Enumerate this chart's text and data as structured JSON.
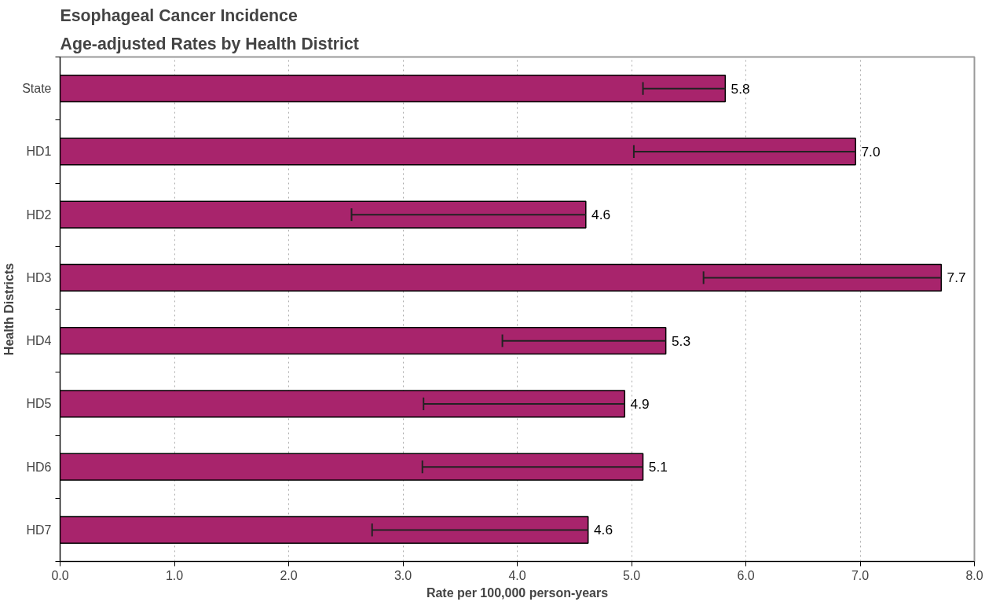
{
  "chart_data": {
    "type": "bar",
    "orientation": "horizontal",
    "title": "Esophageal Cancer Incidence",
    "subtitle": "Age-adjusted Rates by Health District",
    "xlabel": "Rate per 100,000 person-years",
    "ylabel": "Health Districts",
    "categories": [
      "State",
      "HD1",
      "HD2",
      "HD3",
      "HD4",
      "HD5",
      "HD6",
      "HD7"
    ],
    "values": [
      5.82,
      6.96,
      4.6,
      7.71,
      5.3,
      4.94,
      5.1,
      4.62
    ],
    "value_labels": [
      "5.8",
      "7.0",
      "4.6",
      "7.7",
      "5.3",
      "4.9",
      "5.1",
      "4.6"
    ],
    "errors": [
      [
        5.1,
        5.82
      ],
      [
        5.02,
        6.96
      ],
      [
        2.55,
        4.6
      ],
      [
        5.63,
        7.71
      ],
      [
        3.87,
        5.3
      ],
      [
        3.18,
        4.94
      ],
      [
        3.17,
        5.1
      ],
      [
        2.73,
        4.62
      ]
    ],
    "color": "#a8246c",
    "xlim": [
      0,
      8
    ],
    "xticks": [
      {
        "value": 0,
        "label": "0.0"
      },
      {
        "value": 1,
        "label": "1.0"
      },
      {
        "value": 2,
        "label": "2.0"
      },
      {
        "value": 3,
        "label": "3.0"
      },
      {
        "value": 4,
        "label": "4.0"
      },
      {
        "value": 5,
        "label": "5.0"
      },
      {
        "value": 6,
        "label": "6.0"
      },
      {
        "value": 7,
        "label": "7.0"
      },
      {
        "value": 8,
        "label": "8.0"
      }
    ],
    "grid": "x"
  }
}
